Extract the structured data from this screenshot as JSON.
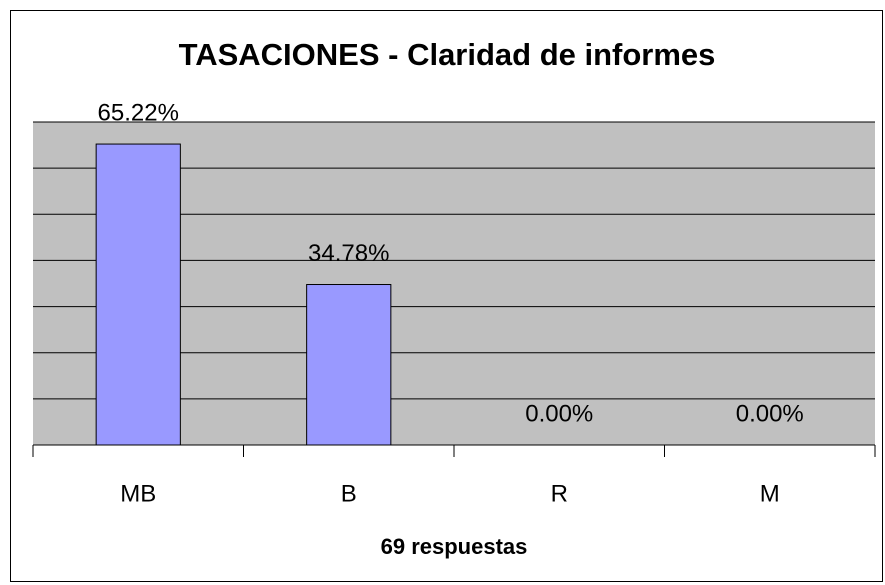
{
  "chart_data": {
    "type": "bar",
    "title": "TASACIONES - Claridad de informes",
    "x_label": "69 respuestas",
    "categories": [
      "MB",
      "B",
      "R",
      "M"
    ],
    "values": [
      65.22,
      34.78,
      0,
      0
    ],
    "value_labels": [
      "65.22%",
      "34.78%",
      "0.00%",
      "0.00%"
    ],
    "color": "#9999ff",
    "ylim": [
      0,
      70
    ],
    "yticks": [
      0,
      10,
      20,
      30,
      40,
      50,
      60,
      70
    ],
    "grid": true
  }
}
